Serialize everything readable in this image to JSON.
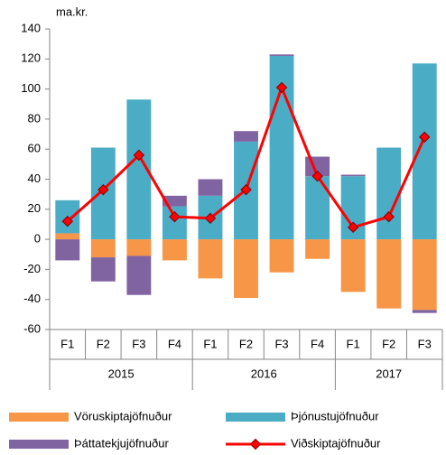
{
  "chart_data": {
    "type": "stacked-bar-line",
    "axis_label": "ma.kr.",
    "groups": [
      {
        "label": "2015",
        "categories": [
          "F1",
          "F2",
          "F3",
          "F4"
        ]
      },
      {
        "label": "2016",
        "categories": [
          "F1",
          "F2",
          "F3",
          "F4"
        ]
      },
      {
        "label": "2017",
        "categories": [
          "F1",
          "F2",
          "F3"
        ]
      }
    ],
    "series": [
      {
        "name": "Vöruskiptajöfnuður",
        "color": "#f79646",
        "kind": "bar",
        "values": [
          4,
          -12,
          -11,
          -14,
          -26,
          -39,
          -22,
          -13,
          -35,
          -46,
          -47
        ]
      },
      {
        "name": "Þjónustujöfnuður",
        "color": "#4bacc6",
        "kind": "bar",
        "values": [
          22,
          61,
          93,
          22,
          29,
          65,
          122,
          42,
          42,
          61,
          117
        ]
      },
      {
        "name": "Þáttatekjujöfnuður",
        "color": "#8064a2",
        "kind": "bar",
        "values": [
          -14,
          -16,
          -26,
          7,
          11,
          7,
          1,
          13,
          1,
          0,
          -2
        ]
      },
      {
        "name": "Viðskiptajöfnuður",
        "color": "#ff0000",
        "kind": "line",
        "values": [
          12,
          33,
          56,
          15,
          14,
          33,
          101,
          42,
          8,
          15,
          68
        ]
      }
    ],
    "ylim": [
      -60,
      140
    ],
    "yticks": [
      -60,
      -40,
      -20,
      0,
      20,
      40,
      60,
      80,
      100,
      120,
      140
    ]
  }
}
